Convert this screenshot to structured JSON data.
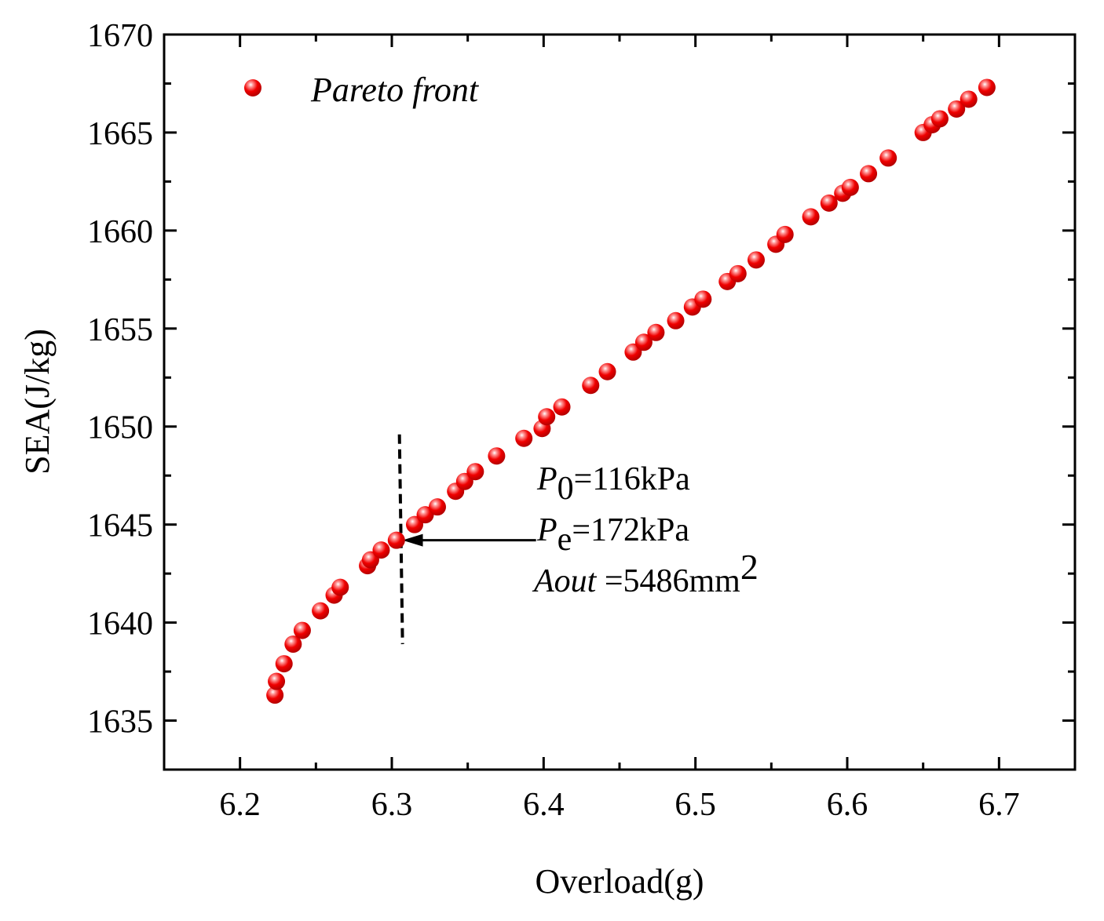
{
  "chart_data": {
    "type": "scatter",
    "title": "",
    "xlabel": "Overload(g)",
    "ylabel": "SEA(J/kg)",
    "xlim": [
      6.15,
      6.75
    ],
    "ylim": [
      1632.5,
      1670
    ],
    "xticks": [
      6.2,
      6.3,
      6.4,
      6.5,
      6.6,
      6.7
    ],
    "yticks": [
      1635,
      1640,
      1645,
      1650,
      1655,
      1660,
      1665,
      1670
    ],
    "xtick_labels": [
      "6.2",
      "6.3",
      "6.4",
      "6.5",
      "6.6",
      "6.7"
    ],
    "ytick_labels": [
      "1635",
      "1640",
      "1645",
      "1650",
      "1655",
      "1660",
      "1665",
      "1670"
    ],
    "legend": {
      "position": "top-left",
      "label": "Pareto front"
    },
    "series": [
      {
        "name": "Pareto front",
        "color": "#e00000",
        "x": [
          6.223,
          6.224,
          6.229,
          6.235,
          6.241,
          6.253,
          6.262,
          6.266,
          6.284,
          6.286,
          6.293,
          6.303,
          6.315,
          6.322,
          6.33,
          6.342,
          6.348,
          6.355,
          6.369,
          6.387,
          6.399,
          6.402,
          6.412,
          6.431,
          6.442,
          6.459,
          6.466,
          6.474,
          6.487,
          6.498,
          6.505,
          6.521,
          6.528,
          6.54,
          6.553,
          6.559,
          6.576,
          6.588,
          6.597,
          6.602,
          6.614,
          6.627,
          6.65,
          6.656,
          6.661,
          6.672,
          6.68,
          6.692
        ],
        "y": [
          1636.3,
          1637.0,
          1637.9,
          1638.9,
          1639.6,
          1640.6,
          1641.4,
          1641.8,
          1642.9,
          1643.2,
          1643.7,
          1644.2,
          1645.0,
          1645.5,
          1645.9,
          1646.7,
          1647.2,
          1647.7,
          1648.5,
          1649.4,
          1649.9,
          1650.5,
          1651.0,
          1652.1,
          1652.8,
          1653.8,
          1654.3,
          1654.8,
          1655.4,
          1656.1,
          1656.5,
          1657.4,
          1657.8,
          1658.5,
          1659.3,
          1659.8,
          1660.7,
          1661.4,
          1661.9,
          1662.2,
          1662.9,
          1663.7,
          1665.0,
          1665.4,
          1665.7,
          1666.2,
          1666.7,
          1667.3
        ]
      }
    ],
    "annotation": {
      "dashed_line": {
        "x": 6.305,
        "y_from": 1638.9,
        "y_to": 1649.6
      },
      "arrow": {
        "from_x": 6.395,
        "to_x": 6.307,
        "y": 1644.2
      },
      "lines": [
        {
          "main": "P",
          "sub": "0",
          "rest": "=116kPa"
        },
        {
          "main": "P",
          "sub": "e",
          "rest": "=172kPa"
        },
        {
          "main": "Aout",
          "rest": " =5486mm",
          "sup": "2"
        }
      ]
    }
  }
}
